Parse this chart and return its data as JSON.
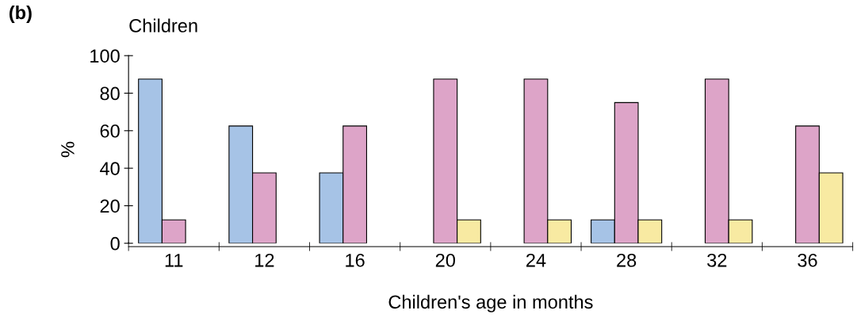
{
  "chart_data": {
    "type": "bar",
    "title": "Children",
    "xlabel": "Children's age in months",
    "ylabel": "%",
    "annotations": [
      "(b)"
    ],
    "categories": [
      "11",
      "12",
      "16",
      "20",
      "24",
      "28",
      "32",
      "36"
    ],
    "series": [
      {
        "color": "#a6c3e6",
        "values": [
          87.5,
          62.5,
          37.5,
          null,
          null,
          12.5,
          null,
          null
        ]
      },
      {
        "color": "#dda4c8",
        "values": [
          12.5,
          37.5,
          62.5,
          87.5,
          87.5,
          75,
          87.5,
          62.5
        ]
      },
      {
        "color": "#f8eaa2",
        "values": [
          null,
          null,
          null,
          12.5,
          12.5,
          12.5,
          12.5,
          37.5
        ]
      }
    ],
    "ylim": [
      0,
      100
    ],
    "yticks": [
      0,
      20,
      40,
      60,
      80,
      100
    ],
    "grid": false,
    "legend": false
  }
}
